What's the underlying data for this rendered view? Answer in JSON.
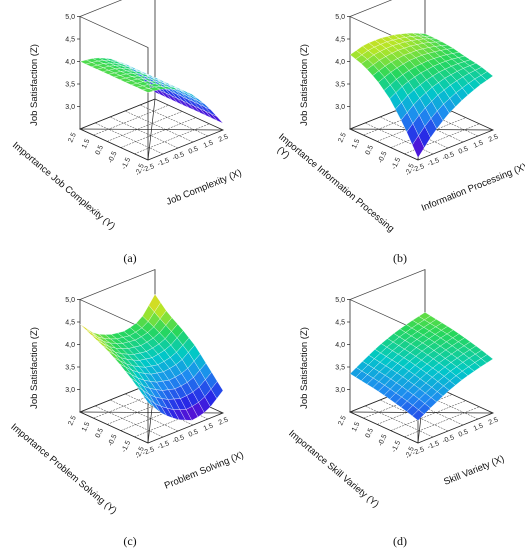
{
  "chart_data": [
    {
      "type": "surface3d",
      "panel_label": "(a)",
      "zlabel": "Job Satisfaction (Z)",
      "xlabel": "Job Complexity (X)",
      "ylabel": "Importance Job Complexity (Y)",
      "x_ticks": [
        "-2.5",
        "-1.5",
        "-0.5",
        "0.5",
        "1.5",
        "2.5"
      ],
      "y_ticks": [
        "2.5",
        "1.5",
        "0.5",
        "-0.5",
        "-1.5",
        "-2.5"
      ],
      "z_ticks": [
        "5,0",
        "4,5",
        "4,0",
        "3,5",
        "3,0"
      ],
      "xlim": [
        -2.5,
        2.5
      ],
      "ylim": [
        -2.5,
        2.5
      ],
      "zlim": [
        2.5,
        5.0
      ],
      "grid_x": [
        -2.5,
        -1.5,
        -0.5,
        0.5,
        1.5,
        2.5
      ],
      "grid_y": [
        -2.5,
        -1.5,
        -0.5,
        0.5,
        1.5,
        2.5
      ],
      "z": [
        [
          4.0,
          3.95,
          3.8,
          3.55,
          3.15,
          2.65
        ],
        [
          4.0,
          3.95,
          3.8,
          3.55,
          3.15,
          2.65
        ],
        [
          4.0,
          3.95,
          3.8,
          3.55,
          3.15,
          2.65
        ],
        [
          4.0,
          3.95,
          3.8,
          3.55,
          3.15,
          2.65
        ],
        [
          4.0,
          3.95,
          3.8,
          3.55,
          3.15,
          2.65
        ],
        [
          4.0,
          3.95,
          3.8,
          3.55,
          3.15,
          2.65
        ]
      ]
    },
    {
      "type": "surface3d",
      "panel_label": "(b)",
      "zlabel": "Job Satisfaction (Z)",
      "xlabel": "Information Processing (X)",
      "ylabel": "Importance Information Processing (Y)",
      "x_ticks": [
        "-2.5",
        "-1.5",
        "-0.5",
        "0.5",
        "1.5",
        "2.5"
      ],
      "y_ticks": [
        "2.5",
        "1.5",
        "0.5",
        "-0.5",
        "-1.5",
        "-2.5"
      ],
      "z_ticks": [
        "5,0",
        "4,5",
        "4,0",
        "3,5",
        "3,0"
      ],
      "xlim": [
        -2.5,
        2.5
      ],
      "ylim": [
        -2.5,
        2.5
      ],
      "zlim": [
        2.5,
        5.0
      ],
      "grid_x": [
        -2.5,
        -1.5,
        -0.5,
        0.5,
        1.5,
        2.5
      ],
      "grid_y": [
        -2.5,
        -1.5,
        -0.5,
        0.5,
        1.5,
        2.5
      ],
      "z": [
        [
          2.55,
          2.95,
          3.25,
          3.45,
          3.6,
          3.7
        ],
        [
          3.1,
          3.4,
          3.6,
          3.72,
          3.78,
          3.8
        ],
        [
          3.55,
          3.75,
          3.85,
          3.9,
          3.9,
          3.85
        ],
        [
          3.85,
          3.98,
          4.05,
          4.05,
          4.0,
          3.92
        ],
        [
          4.05,
          4.15,
          4.18,
          4.15,
          4.08,
          3.95
        ],
        [
          4.15,
          4.25,
          4.25,
          4.2,
          4.1,
          3.95
        ]
      ]
    },
    {
      "type": "surface3d",
      "panel_label": "(c)",
      "zlabel": "Job Satisfaction (Z)",
      "xlabel": "Problem Solving (X)",
      "ylabel": "Importance Problem Solving (Y)",
      "x_ticks": [
        "-2.5",
        "-1.5",
        "-0.5",
        "0.5",
        "1.5",
        "2.5"
      ],
      "y_ticks": [
        "2.5",
        "1.5",
        "0.5",
        "-0.5",
        "-1.5",
        "-2.5"
      ],
      "z_ticks": [
        "5,0",
        "4,5",
        "4,0",
        "3,5",
        "3,0"
      ],
      "xlim": [
        -2.5,
        2.5
      ],
      "ylim": [
        -2.5,
        2.5
      ],
      "zlim": [
        2.5,
        5.0
      ],
      "grid_x": [
        -2.5,
        -1.5,
        -0.5,
        0.5,
        1.5,
        2.5
      ],
      "grid_y": [
        -2.5,
        -1.5,
        -0.5,
        0.5,
        1.5,
        2.5
      ],
      "z": [
        [
          3.4,
          3.0,
          2.75,
          2.6,
          2.7,
          3.0
        ],
        [
          3.7,
          3.35,
          3.15,
          3.05,
          3.1,
          3.35
        ],
        [
          3.95,
          3.65,
          3.45,
          3.38,
          3.45,
          3.7
        ],
        [
          4.15,
          3.85,
          3.68,
          3.62,
          3.7,
          3.95
        ],
        [
          4.3,
          4.0,
          3.85,
          3.8,
          3.88,
          4.15
        ],
        [
          4.45,
          4.1,
          3.95,
          3.9,
          4.0,
          4.45
        ]
      ]
    },
    {
      "type": "surface3d",
      "panel_label": "(d)",
      "zlabel": "Job Satisfaction (Z)",
      "xlabel": "Skill Variety (X)",
      "ylabel": "Importance Skill Variety (Y)",
      "x_ticks": [
        "-2.5",
        "-1.5",
        "-0.5",
        "0.5",
        "1.5",
        "2.5"
      ],
      "y_ticks": [
        "2.5",
        "1.5",
        "0.5",
        "-0.5",
        "-1.5",
        "-2.5"
      ],
      "z_ticks": [
        "5,0",
        "4,5",
        "4,0",
        "3,5",
        "3,0"
      ],
      "xlim": [
        -2.5,
        2.5
      ],
      "ylim": [
        -2.5,
        2.5
      ],
      "zlim": [
        2.5,
        5.0
      ],
      "grid_x": [
        -2.5,
        -1.5,
        -0.5,
        0.5,
        1.5,
        2.5
      ],
      "grid_y": [
        -2.5,
        -1.5,
        -0.5,
        0.5,
        1.5,
        2.5
      ],
      "z": [
        [
          3.0,
          3.2,
          3.38,
          3.52,
          3.62,
          3.7
        ],
        [
          3.1,
          3.3,
          3.48,
          3.62,
          3.72,
          3.8
        ],
        [
          3.18,
          3.38,
          3.56,
          3.7,
          3.8,
          3.88
        ],
        [
          3.25,
          3.45,
          3.63,
          3.77,
          3.87,
          3.95
        ],
        [
          3.3,
          3.5,
          3.68,
          3.82,
          3.92,
          4.0
        ],
        [
          3.35,
          3.55,
          3.73,
          3.87,
          3.97,
          4.05
        ]
      ]
    }
  ]
}
